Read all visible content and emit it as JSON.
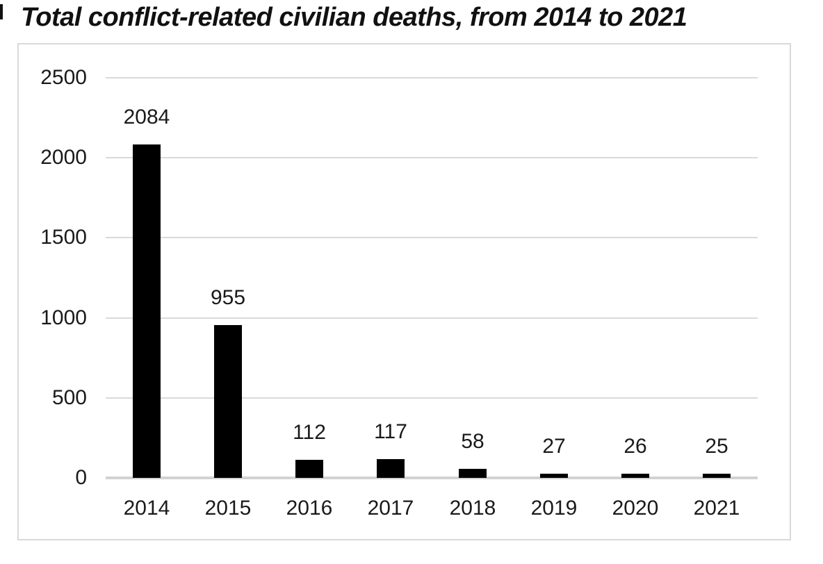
{
  "chart_data": {
    "type": "bar",
    "title": "Total conflict-related civilian deaths, from 2014 to 2021",
    "categories": [
      "2014",
      "2015",
      "2016",
      "2017",
      "2018",
      "2019",
      "2020",
      "2021"
    ],
    "values": [
      2084,
      955,
      112,
      117,
      58,
      27,
      26,
      25
    ],
    "xlabel": "",
    "ylabel": "",
    "ylim": [
      0,
      2500
    ],
    "yticks": [
      0,
      500,
      1000,
      1500,
      2000,
      2500
    ],
    "grid": "horizontal",
    "legend_position": "none",
    "data_labels": true,
    "colors": {
      "bar": "#000000",
      "text": "#1a1a1a",
      "gridline": "#dadada",
      "axis_line": "#d2d2d2",
      "frame_border": "#d9d9d9",
      "background": "#ffffff"
    }
  }
}
